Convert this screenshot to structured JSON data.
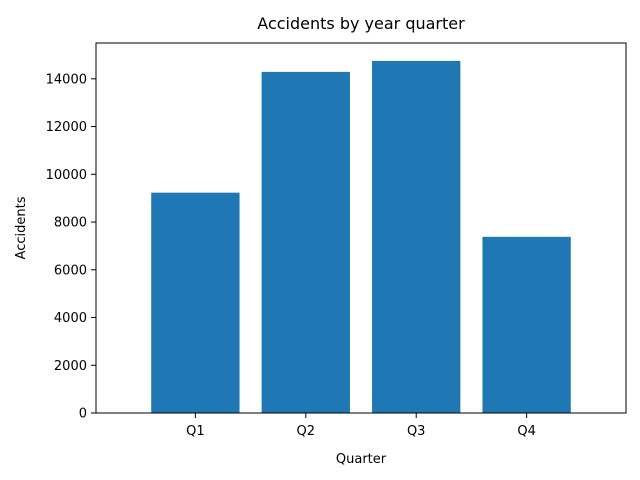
{
  "chart_data": {
    "type": "bar",
    "title": "Accidents by year quarter",
    "xlabel": "Quarter",
    "ylabel": "Accidents",
    "categories": [
      "Q1",
      "Q2",
      "Q3",
      "Q4"
    ],
    "values": [
      9230,
      14290,
      14750,
      7380
    ],
    "ylim": [
      0,
      15500
    ],
    "yticks": [
      0,
      2000,
      4000,
      6000,
      8000,
      10000,
      12000,
      14000
    ],
    "bar_color": "#1f77b4",
    "grid": false,
    "legend": "none"
  }
}
